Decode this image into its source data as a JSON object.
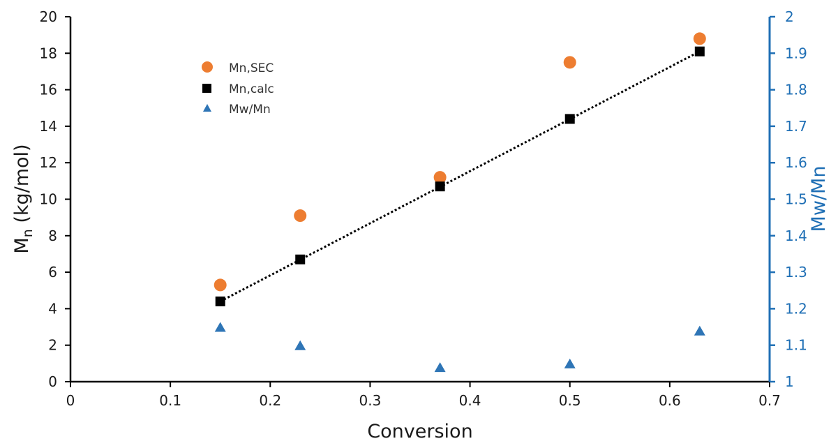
{
  "chart_data": {
    "type": "scatter",
    "xlabel": "Conversion",
    "ylabel_main": "M",
    "ylabel_sub": "n",
    "ylabel_rest": " (kg/mol)",
    "y2label": "Mw/Mn",
    "xlim": [
      0,
      0.7
    ],
    "ylim": [
      0,
      20
    ],
    "y2lim": [
      1,
      2
    ],
    "xticks": [
      "0",
      "0.1",
      "0.2",
      "0.3",
      "0.4",
      "0.5",
      "0.6",
      "0.7"
    ],
    "yticks": [
      "0",
      "2",
      "4",
      "6",
      "8",
      "10",
      "12",
      "14",
      "16",
      "18",
      "20"
    ],
    "y2ticks": [
      "1",
      "1.1",
      "1.2",
      "1.3",
      "1.4",
      "1.5",
      "1.6",
      "1.7",
      "1.8",
      "1.9",
      "2"
    ],
    "grid": false,
    "legend_position": "upper-left",
    "series": [
      {
        "name": "Mn,SEC",
        "marker": "circle",
        "color": "#ed7d31",
        "axis": "left",
        "x": [
          0.15,
          0.23,
          0.37,
          0.5,
          0.63
        ],
        "y": [
          5.3,
          9.1,
          11.2,
          17.5,
          18.8
        ]
      },
      {
        "name": "Mn,calc",
        "marker": "square",
        "color": "#000000",
        "axis": "left",
        "x": [
          0.15,
          0.23,
          0.37,
          0.5,
          0.63
        ],
        "y": [
          4.4,
          6.7,
          10.7,
          14.4,
          18.1
        ]
      },
      {
        "name": "Mw/Mn",
        "marker": "triangle",
        "color": "#2e75b6",
        "axis": "right",
        "x": [
          0.15,
          0.23,
          0.37,
          0.5,
          0.63
        ],
        "y": [
          1.15,
          1.1,
          1.04,
          1.05,
          1.14
        ]
      }
    ],
    "trendline": {
      "style": "dotted",
      "color": "#000000",
      "x": [
        0.15,
        0.63
      ],
      "y": [
        4.4,
        18.1
      ]
    },
    "colors": {
      "axis_left": "#000000",
      "axis_right": "#1f6fb5"
    }
  }
}
